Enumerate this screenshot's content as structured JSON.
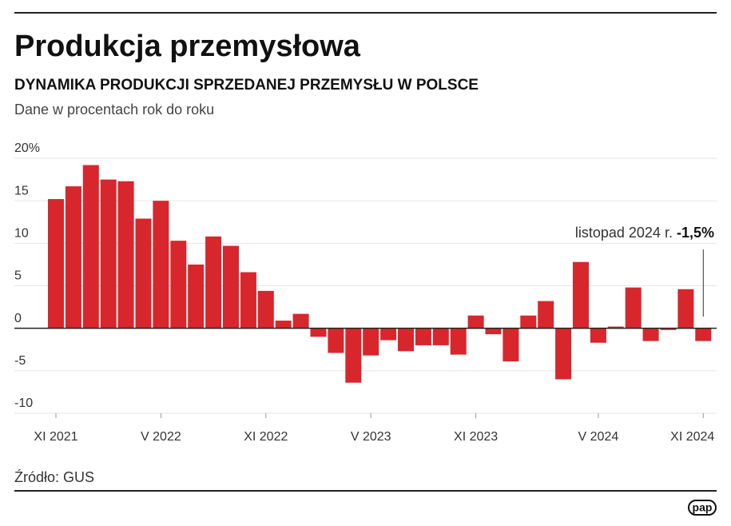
{
  "chart_data": {
    "type": "bar",
    "title": "Produkcja przemysłowa",
    "subtitle": "DYNAMIKA PRODUKCJI SPRZEDANEJ PRZEMYSŁU W POLSCE",
    "note": "Dane w procentach rok do roku",
    "source": "Źródło: GUS",
    "logo": "pap",
    "annotation": {
      "text": "listopad 2024 r.",
      "value_label": "-1,5%"
    },
    "categories": [
      "XI 2021",
      null,
      null,
      null,
      null,
      null,
      "V 2022",
      null,
      null,
      null,
      null,
      null,
      "XI 2022",
      null,
      null,
      null,
      null,
      null,
      "V 2023",
      null,
      null,
      null,
      null,
      null,
      "XI 2023",
      null,
      null,
      null,
      null,
      null,
      null,
      "V 2024",
      null,
      null,
      null,
      null,
      null,
      "XI 2024"
    ],
    "values": [
      15.2,
      16.7,
      19.2,
      17.5,
      17.3,
      12.9,
      15.0,
      10.3,
      7.5,
      10.8,
      9.7,
      6.6,
      4.4,
      0.9,
      1.7,
      -1.0,
      -2.9,
      -6.4,
      -3.2,
      -1.4,
      -2.7,
      -2.0,
      -2.0,
      -3.1,
      1.5,
      -0.7,
      -3.9,
      1.5,
      3.2,
      -6.0,
      7.8,
      -1.7,
      0.2,
      4.8,
      -1.5,
      -0.2,
      4.6,
      -1.5
    ],
    "color": "#d8262d",
    "ylim": [
      -10,
      20
    ],
    "yticks": [
      -10,
      -5,
      0,
      5,
      10,
      15,
      {
        "value": 20,
        "label": "20%"
      }
    ],
    "grid": true
  }
}
